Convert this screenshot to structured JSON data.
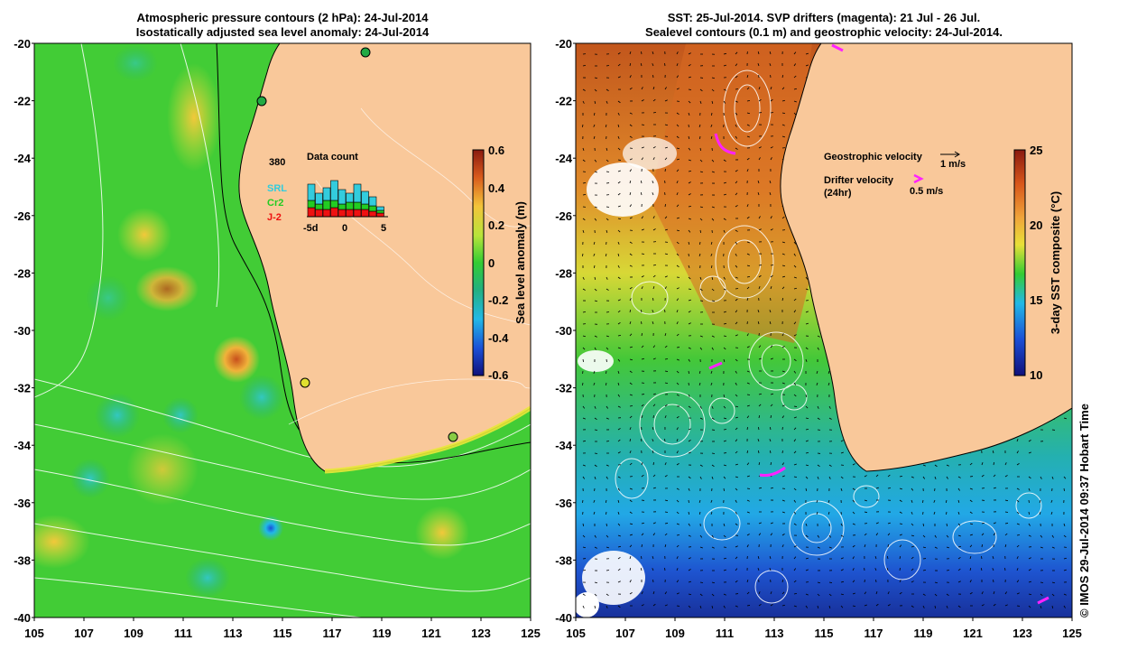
{
  "left_map": {
    "title_line1": "Atmospheric pressure contours (2 hPa): 24-Jul-2014",
    "title_line2": "Isostatically adjusted sea level anomaly: 24-Jul-2014",
    "colorbar": {
      "label": "Sea level anomaly (m)",
      "ticks": [
        "0.6",
        "0.4",
        "0.2",
        "0",
        "-0.2",
        "-0.4",
        "-0.6"
      ]
    },
    "inset": {
      "title": "Data count",
      "max_label": "380",
      "x_ticks": [
        "-5d",
        "0",
        "5"
      ],
      "legend": [
        {
          "label": "SRL",
          "color": "#33ccdd"
        },
        {
          "label": "Cr2",
          "color": "#22cc22"
        },
        {
          "label": "J-2",
          "color": "#ee1111"
        }
      ]
    }
  },
  "right_map": {
    "title_line1": "SST: 25-Jul-2014. SVP drifters (magenta): 21 Jul - 26 Jul.",
    "title_line2": "Sealevel contours (0.1 m) and geostrophic velocity: 24-Jul-2014.",
    "legend": {
      "geo_label": "Geostrophic velocity",
      "geo_scale": "1 m/s",
      "drifter_label": "Drifter velocity",
      "drifter_sub": "(24hr)",
      "drifter_scale": "0.5 m/s"
    },
    "colorbar": {
      "label": "3-day SST composite (°C)",
      "ticks": [
        "25",
        "20",
        "15",
        "10"
      ]
    }
  },
  "axes": {
    "lat_ticks": [
      "-20",
      "-22",
      "-24",
      "-26",
      "-28",
      "-30",
      "-32",
      "-34",
      "-36",
      "-38",
      "-40"
    ],
    "lon_ticks": [
      "105",
      "107",
      "109",
      "111",
      "113",
      "115",
      "117",
      "119",
      "121",
      "123",
      "125"
    ]
  },
  "credit": "© IMOS 29-Jul-2014 09:37 Hobart Time",
  "colors": {
    "land": "#f9c89a",
    "ocean_green": "#3fcc3a",
    "drifter": "#ff22ff"
  }
}
